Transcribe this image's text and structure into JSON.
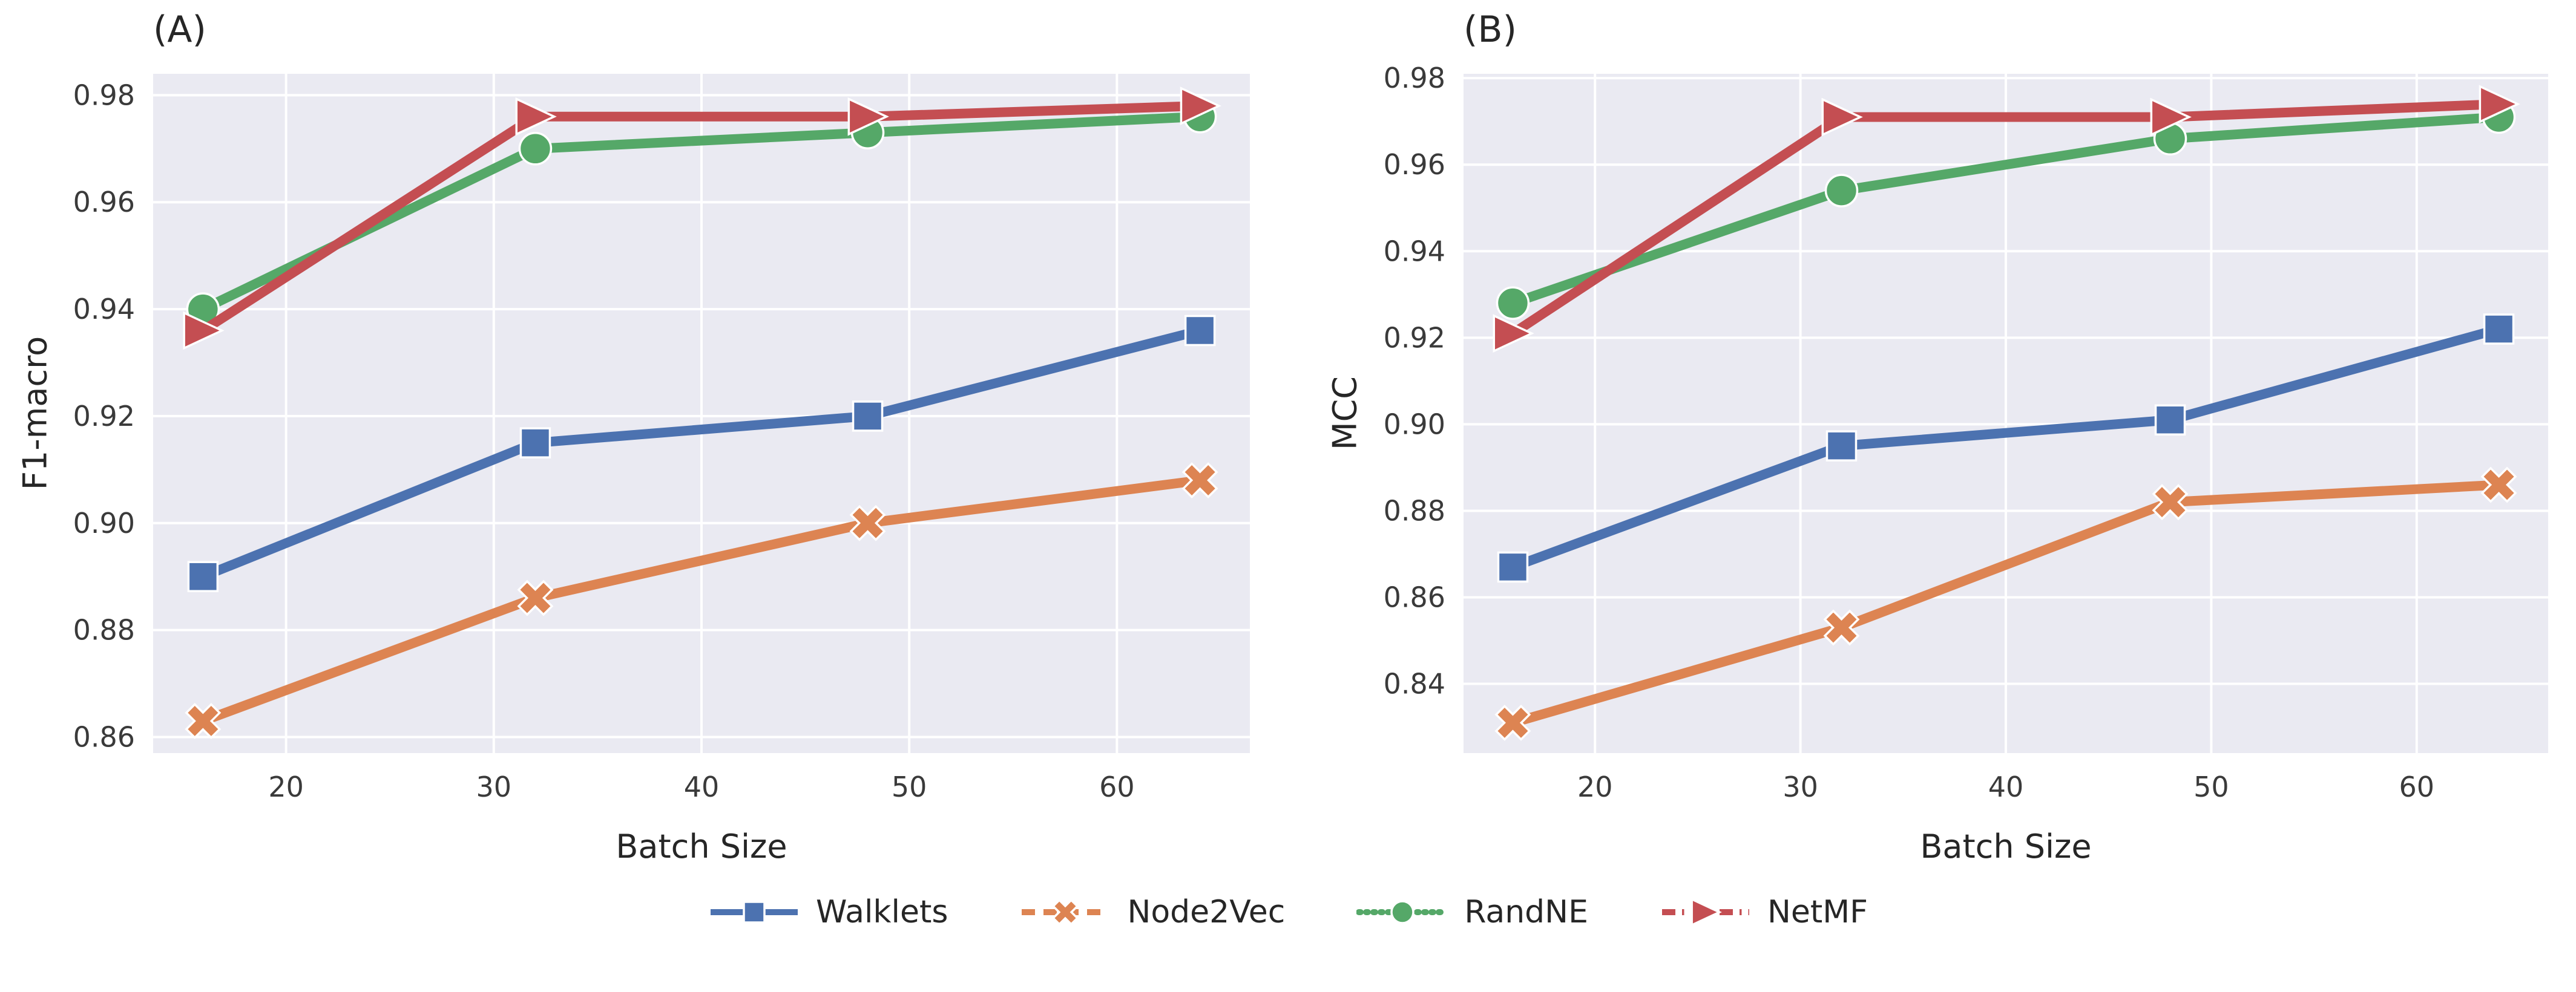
{
  "styles": {
    "axes_background": "#eaeaf2",
    "grid_color": "#ffffff",
    "label_color": "#262626",
    "tick_color": "#3a3a3a",
    "marker_edge_color": "#ffffff"
  },
  "legend": {
    "items": [
      {
        "label": "Walklets"
      },
      {
        "label": "Node2Vec"
      },
      {
        "label": "RandNE"
      },
      {
        "label": "NetMF"
      }
    ]
  },
  "chart_data": [
    {
      "type": "line",
      "panel_label": "(A)",
      "xlabel": "Batch Size",
      "ylabel": "F1-macro",
      "x": [
        16,
        32,
        48,
        64
      ],
      "xlim": [
        13.6,
        66.4
      ],
      "ylim": [
        0.857,
        0.984
      ],
      "xticks": [
        20,
        30,
        40,
        50,
        60
      ],
      "yticks": [
        0.86,
        0.88,
        0.9,
        0.92,
        0.94,
        0.96,
        0.98
      ],
      "grid": true,
      "legend_position": "lower-center-outside",
      "series": [
        {
          "name": "Walklets",
          "color": "#4C72B0",
          "marker": "square",
          "linestyle": "solid",
          "values": [
            0.89,
            0.915,
            0.92,
            0.936
          ]
        },
        {
          "name": "Node2Vec",
          "color": "#DD8452",
          "marker": "x",
          "linestyle": "dashed",
          "values": [
            0.863,
            0.886,
            0.9,
            0.908
          ]
        },
        {
          "name": "RandNE",
          "color": "#55A868",
          "marker": "circle",
          "linestyle": "dotted",
          "values": [
            0.94,
            0.97,
            0.973,
            0.976
          ]
        },
        {
          "name": "NetMF",
          "color": "#C44E52",
          "marker": "triangle-right",
          "linestyle": "dashdot",
          "values": [
            0.936,
            0.976,
            0.976,
            0.978
          ]
        }
      ]
    },
    {
      "type": "line",
      "panel_label": "(B)",
      "xlabel": "Batch Size",
      "ylabel": "MCC",
      "x": [
        16,
        32,
        48,
        64
      ],
      "xlim": [
        13.6,
        66.4
      ],
      "ylim": [
        0.824,
        0.981
      ],
      "xticks": [
        20,
        30,
        40,
        50,
        60
      ],
      "yticks": [
        0.84,
        0.86,
        0.88,
        0.9,
        0.92,
        0.94,
        0.96,
        0.98
      ],
      "grid": true,
      "legend_position": "lower-center-outside",
      "series": [
        {
          "name": "Walklets",
          "color": "#4C72B0",
          "marker": "square",
          "linestyle": "solid",
          "values": [
            0.867,
            0.895,
            0.901,
            0.922
          ]
        },
        {
          "name": "Node2Vec",
          "color": "#DD8452",
          "marker": "x",
          "linestyle": "dashed",
          "values": [
            0.831,
            0.853,
            0.882,
            0.886
          ]
        },
        {
          "name": "RandNE",
          "color": "#55A868",
          "marker": "circle",
          "linestyle": "dotted",
          "values": [
            0.928,
            0.954,
            0.966,
            0.971
          ]
        },
        {
          "name": "NetMF",
          "color": "#C44E52",
          "marker": "triangle-right",
          "linestyle": "dashdot",
          "values": [
            0.921,
            0.971,
            0.971,
            0.974
          ]
        }
      ]
    }
  ]
}
